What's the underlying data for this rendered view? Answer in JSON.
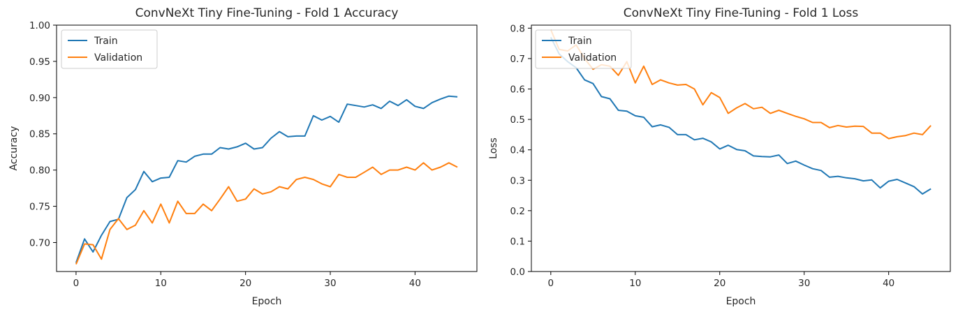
{
  "chart_data": [
    {
      "type": "line",
      "title": "ConvNeXt Tiny Fine-Tuning - Fold 1 Accuracy",
      "xlabel": "Epoch",
      "ylabel": "Accuracy",
      "xlim": [
        -2.3,
        47.3
      ],
      "ylim": [
        0.66,
        1.0
      ],
      "xticks": [
        0,
        10,
        20,
        30,
        40
      ],
      "xtick_labels": [
        "0",
        "10",
        "20",
        "30",
        "40"
      ],
      "yticks": [
        0.7,
        0.75,
        0.8,
        0.85,
        0.9,
        0.95,
        1.0
      ],
      "ytick_labels": [
        "0.70",
        "0.75",
        "0.80",
        "0.85",
        "0.90",
        "0.95",
        "1.00"
      ],
      "legend_position": "top-left",
      "x": [
        0,
        1,
        2,
        3,
        4,
        5,
        6,
        7,
        8,
        9,
        10,
        11,
        12,
        13,
        14,
        15,
        16,
        17,
        18,
        19,
        20,
        21,
        22,
        23,
        24,
        25,
        26,
        27,
        28,
        29,
        30,
        31,
        32,
        33,
        34,
        35,
        36,
        37,
        38,
        39,
        40,
        41,
        42,
        43,
        44,
        45
      ],
      "series": [
        {
          "name": "Train",
          "color": "#1f77b4",
          "values": [
            0.672,
            0.705,
            0.687,
            0.71,
            0.729,
            0.732,
            0.762,
            0.773,
            0.798,
            0.784,
            0.789,
            0.79,
            0.813,
            0.811,
            0.819,
            0.822,
            0.822,
            0.831,
            0.829,
            0.832,
            0.837,
            0.829,
            0.831,
            0.844,
            0.853,
            0.846,
            0.847,
            0.847,
            0.875,
            0.869,
            0.874,
            0.866,
            0.891,
            0.889,
            0.887,
            0.89,
            0.885,
            0.895,
            0.889,
            0.897,
            0.888,
            0.885,
            0.893,
            0.898,
            0.902,
            0.901
          ]
        },
        {
          "name": "Validation",
          "color": "#ff7f0e",
          "values": [
            0.67,
            0.698,
            0.697,
            0.677,
            0.718,
            0.733,
            0.718,
            0.724,
            0.744,
            0.727,
            0.753,
            0.727,
            0.757,
            0.74,
            0.74,
            0.753,
            0.744,
            0.76,
            0.777,
            0.757,
            0.76,
            0.774,
            0.767,
            0.77,
            0.777,
            0.774,
            0.787,
            0.79,
            0.787,
            0.781,
            0.777,
            0.794,
            0.79,
            0.79,
            0.797,
            0.804,
            0.794,
            0.8,
            0.8,
            0.804,
            0.8,
            0.81,
            0.8,
            0.804,
            0.81,
            0.804
          ]
        }
      ]
    },
    {
      "type": "line",
      "title": "ConvNeXt Tiny Fine-Tuning - Fold 1 Loss",
      "xlabel": "Epoch",
      "ylabel": "Loss",
      "xlim": [
        -2.3,
        47.3
      ],
      "ylim": [
        0.0,
        0.81
      ],
      "xticks": [
        0,
        10,
        20,
        30,
        40
      ],
      "xtick_labels": [
        "0",
        "10",
        "20",
        "30",
        "40"
      ],
      "yticks": [
        0.0,
        0.1,
        0.2,
        0.3,
        0.4,
        0.5,
        0.6,
        0.7,
        0.8
      ],
      "ytick_labels": [
        "0.0",
        "0.1",
        "0.2",
        "0.3",
        "0.4",
        "0.5",
        "0.6",
        "0.7",
        "0.8"
      ],
      "legend_position": "top-left",
      "x": [
        0,
        1,
        2,
        3,
        4,
        5,
        6,
        7,
        8,
        9,
        10,
        11,
        12,
        13,
        14,
        15,
        16,
        17,
        18,
        19,
        20,
        21,
        22,
        23,
        24,
        25,
        26,
        27,
        28,
        29,
        30,
        31,
        32,
        33,
        34,
        35,
        36,
        37,
        38,
        39,
        40,
        41,
        42,
        43,
        44,
        45
      ],
      "series": [
        {
          "name": "Train",
          "color": "#1f77b4",
          "values": [
            0.77,
            0.715,
            0.69,
            0.67,
            0.63,
            0.618,
            0.575,
            0.568,
            0.53,
            0.527,
            0.512,
            0.507,
            0.476,
            0.482,
            0.474,
            0.45,
            0.45,
            0.433,
            0.438,
            0.426,
            0.403,
            0.415,
            0.401,
            0.397,
            0.38,
            0.378,
            0.377,
            0.383,
            0.355,
            0.363,
            0.35,
            0.338,
            0.332,
            0.31,
            0.313,
            0.308,
            0.305,
            0.298,
            0.301,
            0.275,
            0.297,
            0.303,
            0.291,
            0.279,
            0.255,
            0.272
          ]
        },
        {
          "name": "Validation",
          "color": "#ff7f0e",
          "values": [
            0.795,
            0.73,
            0.725,
            0.745,
            0.7,
            0.665,
            0.68,
            0.675,
            0.645,
            0.69,
            0.62,
            0.675,
            0.615,
            0.63,
            0.62,
            0.613,
            0.615,
            0.6,
            0.548,
            0.588,
            0.572,
            0.52,
            0.538,
            0.552,
            0.535,
            0.54,
            0.52,
            0.53,
            0.52,
            0.51,
            0.502,
            0.49,
            0.49,
            0.473,
            0.48,
            0.475,
            0.478,
            0.477,
            0.455,
            0.455,
            0.437,
            0.443,
            0.447,
            0.455,
            0.45,
            0.48
          ]
        }
      ]
    }
  ]
}
